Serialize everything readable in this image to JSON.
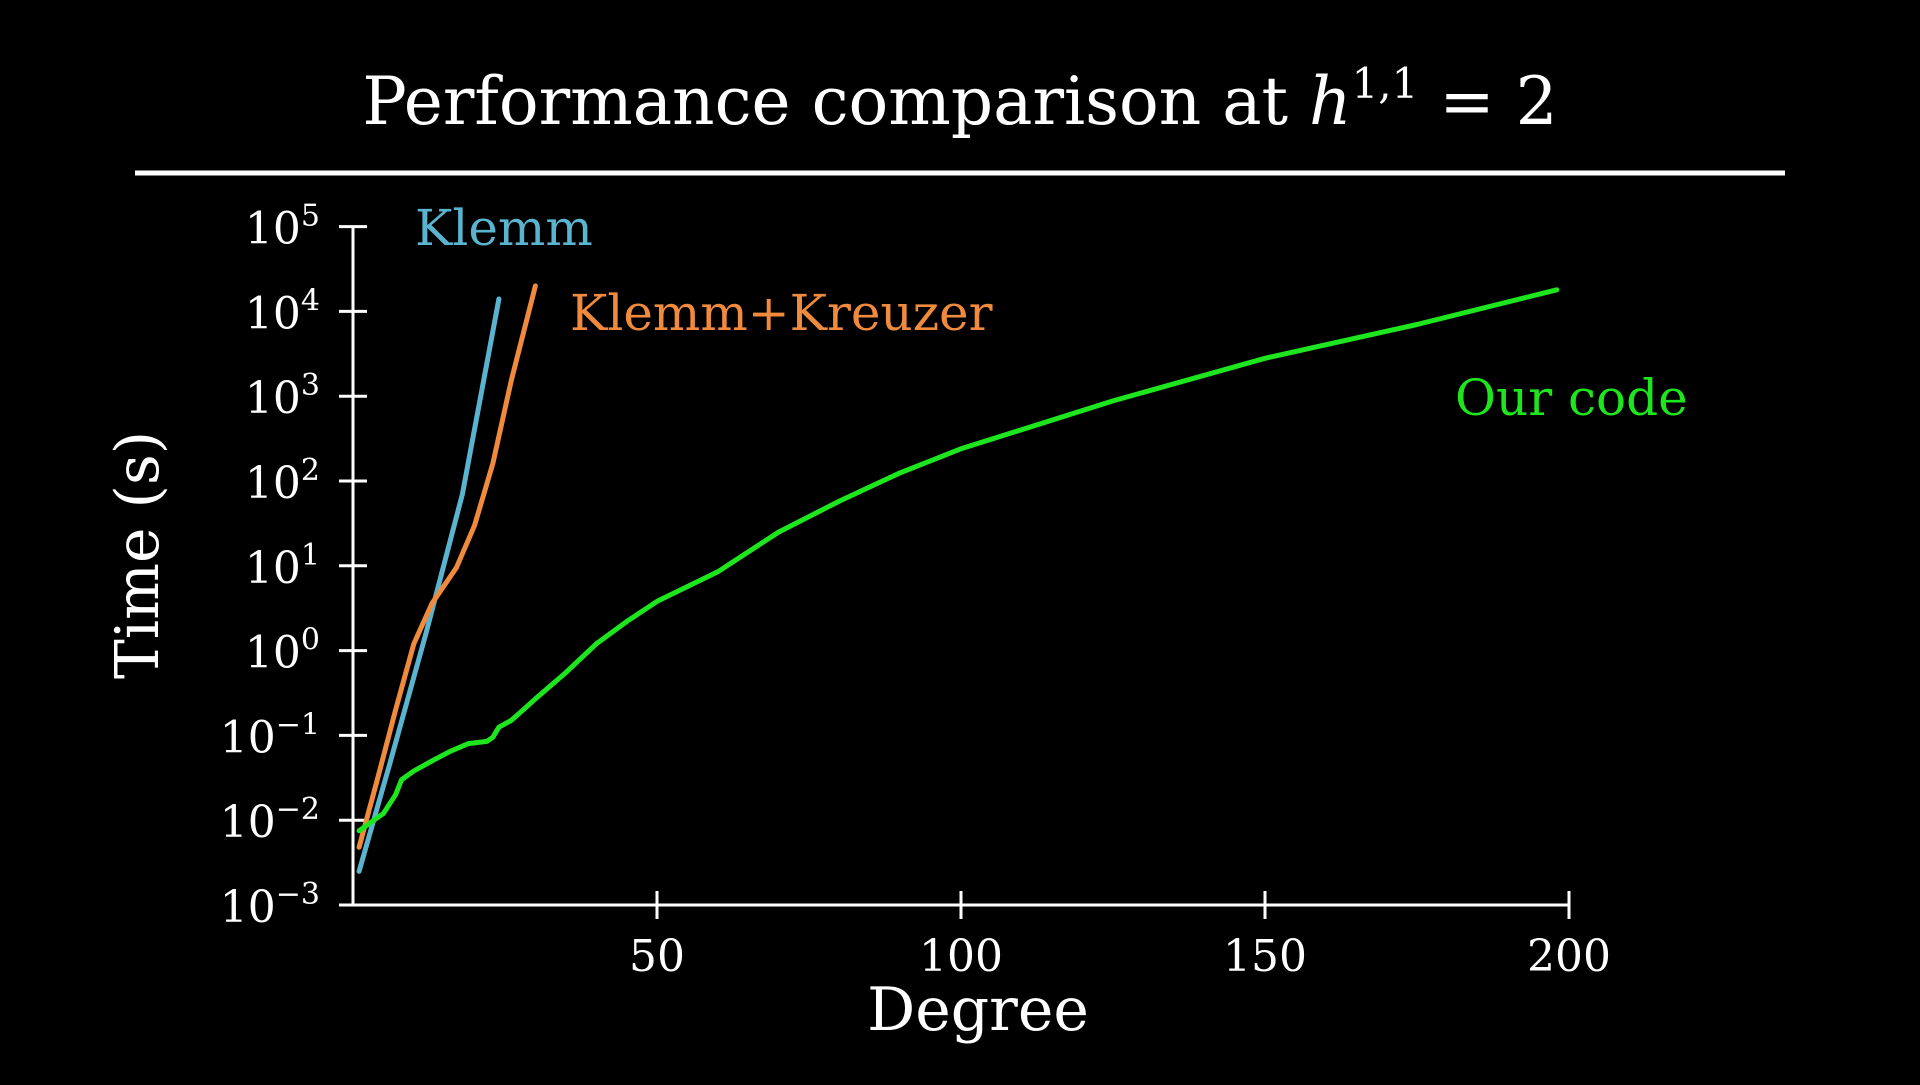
{
  "title": {
    "prefix": "Performance comparison at ",
    "var": "h",
    "sup": "1,1",
    "suffix": " = 2"
  },
  "colors": {
    "background": "#000000",
    "foreground": "#ffffff",
    "klemm": "#5ab4d0",
    "klemm_kreuzer": "#f08a3c",
    "our_code": "#1ee61e"
  },
  "chart_data": {
    "type": "line",
    "xlabel": "Degree",
    "ylabel": "Time (s)",
    "xlim": [
      0,
      200
    ],
    "ylim": [
      0.001,
      100000
    ],
    "yscale": "log",
    "grid": false,
    "legend": "inline labels at line ends",
    "x_ticks": [
      {
        "value": 50,
        "label": "50"
      },
      {
        "value": 100,
        "label": "100"
      },
      {
        "value": 150,
        "label": "150"
      },
      {
        "value": 200,
        "label": "200"
      }
    ],
    "y_ticks": [
      {
        "exp": -3,
        "base": "10",
        "sup": "−3"
      },
      {
        "exp": -2,
        "base": "10",
        "sup": "−2"
      },
      {
        "exp": -1,
        "base": "10",
        "sup": "−1"
      },
      {
        "exp": 0,
        "base": "10",
        "sup": "0"
      },
      {
        "exp": 1,
        "base": "10",
        "sup": "1"
      },
      {
        "exp": 2,
        "base": "10",
        "sup": "2"
      },
      {
        "exp": 3,
        "base": "10",
        "sup": "3"
      },
      {
        "exp": 4,
        "base": "10",
        "sup": "4"
      },
      {
        "exp": 5,
        "base": "10",
        "sup": "5"
      }
    ],
    "series": [
      {
        "name": "Klemm",
        "color": "#5ab4d0",
        "points": [
          [
            1,
            0.0025
          ],
          [
            6,
            0.045
          ],
          [
            12,
            1.6
          ],
          [
            18,
            70
          ],
          [
            24,
            14000
          ]
        ]
      },
      {
        "name": "Klemm+Kreuzer",
        "color": "#f08a3c",
        "points": [
          [
            1,
            0.0048
          ],
          [
            4,
            0.03
          ],
          [
            7,
            0.2
          ],
          [
            10,
            1.2
          ],
          [
            13,
            3.6
          ],
          [
            17,
            9.5
          ],
          [
            20,
            30
          ],
          [
            23,
            160
          ],
          [
            26,
            1500
          ],
          [
            30,
            20000
          ]
        ]
      },
      {
        "name": "Our code",
        "color": "#1ee61e",
        "points": [
          [
            1,
            0.0075
          ],
          [
            3,
            0.0095
          ],
          [
            5,
            0.012
          ],
          [
            7,
            0.02
          ],
          [
            8,
            0.03
          ],
          [
            10,
            0.038
          ],
          [
            13,
            0.05
          ],
          [
            16,
            0.065
          ],
          [
            19,
            0.08
          ],
          [
            22,
            0.085
          ],
          [
            23,
            0.095
          ],
          [
            24,
            0.125
          ],
          [
            26,
            0.15
          ],
          [
            28,
            0.2
          ],
          [
            30,
            0.27
          ],
          [
            35,
            0.55
          ],
          [
            40,
            1.2
          ],
          [
            45,
            2.2
          ],
          [
            50,
            3.8
          ],
          [
            60,
            8.5
          ],
          [
            70,
            25
          ],
          [
            80,
            58
          ],
          [
            90,
            125
          ],
          [
            100,
            240
          ],
          [
            125,
            880
          ],
          [
            150,
            2800
          ],
          [
            175,
            7000
          ],
          [
            198,
            18000
          ]
        ]
      }
    ]
  }
}
